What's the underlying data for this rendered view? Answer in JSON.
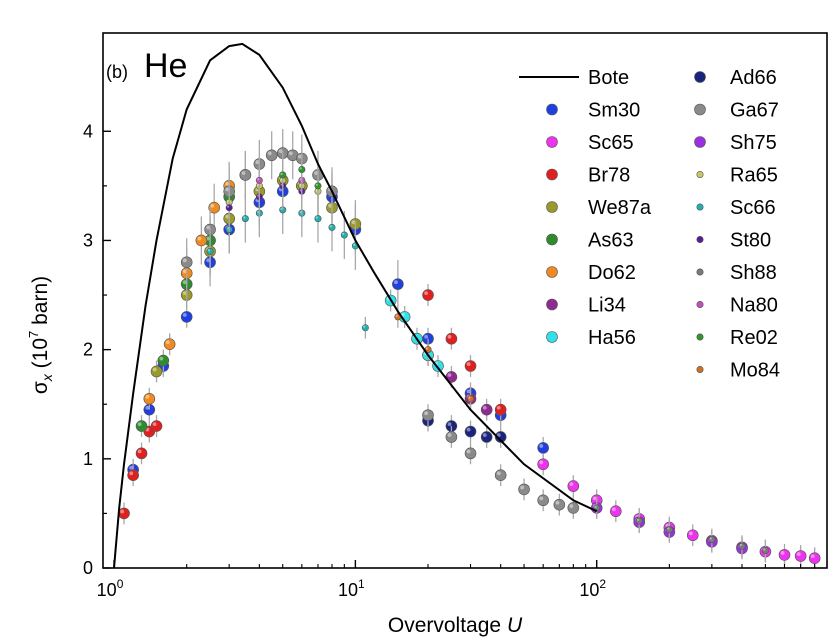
{
  "chart_data": {
    "type": "scatter",
    "panel_label": "(b)",
    "element": "He",
    "xlabel": "Overvoltage U",
    "xlabel_text": "Overvoltage ",
    "xlabel_var": "U",
    "ylabel": "σx (10^7 barn)",
    "ylabel_sigma": "σ",
    "ylabel_sub": "x",
    "ylabel_open": " (10",
    "ylabel_exp": "7",
    "ylabel_unit": " barn)",
    "xscale": "log",
    "xlim": [
      0.9,
      900
    ],
    "ylim": [
      0,
      4.9
    ],
    "x_ticks": [
      {
        "value": 1,
        "base": "10",
        "exp": "0"
      },
      {
        "value": 10,
        "base": "10",
        "exp": "1"
      },
      {
        "value": 100,
        "base": "10",
        "exp": "2"
      }
    ],
    "y_ticks": [
      {
        "value": 0,
        "label": "0"
      },
      {
        "value": 1,
        "label": "1"
      },
      {
        "value": 2,
        "label": "2"
      },
      {
        "value": 3,
        "label": "3"
      },
      {
        "value": 4,
        "label": "4"
      }
    ],
    "legend_position": "top-right",
    "legend": [
      {
        "name": "Bote",
        "kind": "line",
        "color": "#000000"
      },
      {
        "name": "Sm30",
        "kind": "marker",
        "color": "#1f3fe0",
        "size": "large"
      },
      {
        "name": "Sc65",
        "kind": "marker",
        "color": "#ee33ee",
        "size": "large"
      },
      {
        "name": "Br78",
        "kind": "marker",
        "color": "#e02020",
        "size": "large"
      },
      {
        "name": "We87a",
        "kind": "marker",
        "color": "#9a9a2a",
        "size": "large"
      },
      {
        "name": "As63",
        "kind": "marker",
        "color": "#2e8b2e",
        "size": "large"
      },
      {
        "name": "Do62",
        "kind": "marker",
        "color": "#f08a20",
        "size": "large"
      },
      {
        "name": "Li34",
        "kind": "marker",
        "color": "#8e2a92",
        "size": "large"
      },
      {
        "name": "Ha56",
        "kind": "marker",
        "color": "#33e0e8",
        "size": "large"
      },
      {
        "name": "Ad66",
        "kind": "marker",
        "color": "#1a237e",
        "size": "large"
      },
      {
        "name": "Ga67",
        "kind": "marker",
        "color": "#8a8a8a",
        "size": "large"
      },
      {
        "name": "Sh75",
        "kind": "marker",
        "color": "#9b30e0",
        "size": "large"
      },
      {
        "name": "Ra65",
        "kind": "marker",
        "color": "#c8c860",
        "size": "small"
      },
      {
        "name": "Sc66",
        "kind": "marker",
        "color": "#20b0b0",
        "size": "small"
      },
      {
        "name": "St80",
        "kind": "marker",
        "color": "#5a1a9a",
        "size": "small"
      },
      {
        "name": "Sh88",
        "kind": "marker",
        "color": "#7a7a7a",
        "size": "small"
      },
      {
        "name": "Na80",
        "kind": "marker",
        "color": "#c050c0",
        "size": "small"
      },
      {
        "name": "Re02",
        "kind": "marker",
        "color": "#2a9a2a",
        "size": "small"
      },
      {
        "name": "Mo84",
        "kind": "marker",
        "color": "#d07020",
        "size": "small"
      }
    ],
    "bote_curve": {
      "x": [
        1,
        1.05,
        1.1,
        1.2,
        1.35,
        1.5,
        1.75,
        2,
        2.5,
        3,
        3.4,
        4,
        5,
        6,
        7,
        8,
        10,
        12,
        15,
        20,
        30,
        50,
        80,
        100
      ],
      "y": [
        0,
        0.55,
        0.95,
        1.6,
        2.4,
        3.0,
        3.75,
        4.2,
        4.65,
        4.78,
        4.8,
        4.7,
        4.4,
        4.05,
        3.7,
        3.45,
        3.0,
        2.7,
        2.35,
        1.95,
        1.45,
        0.95,
        0.62,
        0.52
      ]
    },
    "series": [
      {
        "name": "Sm30",
        "x": [
          1.2,
          1.4,
          1.6,
          2,
          2.5,
          3,
          4,
          5,
          6,
          8,
          10,
          15,
          20,
          30,
          40,
          60
        ],
        "y": [
          0.9,
          1.45,
          1.85,
          2.3,
          2.8,
          3.1,
          3.35,
          3.45,
          3.5,
          3.4,
          3.1,
          2.6,
          2.1,
          1.6,
          1.4,
          1.1
        ]
      },
      {
        "name": "Sc65",
        "x": [
          60,
          80,
          100,
          120,
          150,
          200,
          250,
          300,
          400,
          500,
          600,
          700,
          800
        ],
        "y": [
          0.95,
          0.75,
          0.62,
          0.52,
          0.45,
          0.37,
          0.3,
          0.25,
          0.19,
          0.15,
          0.12,
          0.11,
          0.09
        ]
      },
      {
        "name": "Br78",
        "x": [
          1.1,
          1.2,
          1.3,
          1.4,
          1.5,
          20,
          25,
          30,
          40
        ],
        "y": [
          0.5,
          0.85,
          1.05,
          1.25,
          1.3,
          2.5,
          2.1,
          1.85,
          1.45
        ]
      },
      {
        "name": "We87a",
        "x": [
          1.5,
          2,
          2.5,
          3,
          4,
          5,
          6,
          8,
          10
        ],
        "y": [
          1.8,
          2.5,
          2.9,
          3.2,
          3.45,
          3.55,
          3.5,
          3.3,
          3.15
        ]
      },
      {
        "name": "As63",
        "x": [
          1.3,
          1.6,
          2,
          2.5,
          3,
          3.5
        ],
        "y": [
          1.3,
          1.9,
          2.6,
          3.0,
          3.4,
          3.6
        ]
      },
      {
        "name": "Do62",
        "x": [
          1.4,
          1.7,
          2,
          2.3,
          2.6,
          3
        ],
        "y": [
          1.55,
          2.05,
          2.7,
          3.0,
          3.3,
          3.5
        ]
      },
      {
        "name": "Li34",
        "x": [
          20,
          25,
          30,
          35
        ],
        "y": [
          1.95,
          1.75,
          1.55,
          1.45
        ]
      },
      {
        "name": "Ha56",
        "x": [
          14,
          16,
          18,
          20,
          22
        ],
        "y": [
          2.45,
          2.3,
          2.1,
          1.95,
          1.85
        ]
      },
      {
        "name": "Ad66",
        "x": [
          20,
          25,
          30,
          35,
          40
        ],
        "y": [
          1.35,
          1.3,
          1.25,
          1.2,
          1.2
        ]
      },
      {
        "name": "Ga67",
        "x": [
          2,
          2.5,
          3,
          3.5,
          4,
          4.5,
          5,
          5.5,
          6,
          7,
          8,
          20,
          25,
          30,
          40,
          50,
          60,
          70,
          80
        ],
        "y": [
          2.8,
          3.1,
          3.45,
          3.6,
          3.7,
          3.78,
          3.8,
          3.78,
          3.75,
          3.6,
          3.45,
          1.4,
          1.2,
          1.05,
          0.85,
          0.72,
          0.62,
          0.58,
          0.55
        ]
      },
      {
        "name": "Sh75",
        "x": [
          100,
          150,
          200,
          300,
          400
        ],
        "y": [
          0.55,
          0.42,
          0.33,
          0.24,
          0.18
        ]
      },
      {
        "name": "Ra65",
        "x": [
          3,
          4,
          5,
          6,
          7
        ],
        "y": [
          3.35,
          3.5,
          3.55,
          3.5,
          3.45
        ]
      },
      {
        "name": "Sc66",
        "x": [
          2.5,
          3,
          3.5,
          4,
          5,
          6,
          7,
          8,
          9,
          10,
          11
        ],
        "y": [
          2.9,
          3.1,
          3.2,
          3.25,
          3.28,
          3.25,
          3.2,
          3.12,
          3.05,
          2.95,
          2.2
        ]
      },
      {
        "name": "St80",
        "x": [
          3,
          4,
          5,
          6
        ],
        "y": [
          3.3,
          3.4,
          3.5,
          3.45
        ]
      },
      {
        "name": "Sh88",
        "x": [
          100,
          150,
          200,
          300,
          400,
          500
        ],
        "y": [
          0.55,
          0.43,
          0.35,
          0.26,
          0.2,
          0.16
        ]
      },
      {
        "name": "Na80",
        "x": [
          4,
          5,
          6
        ],
        "y": [
          3.55,
          3.6,
          3.55
        ]
      },
      {
        "name": "Re02",
        "x": [
          5,
          6,
          7
        ],
        "y": [
          3.6,
          3.65,
          3.5
        ]
      },
      {
        "name": "Mo84",
        "x": [
          15,
          20,
          30
        ],
        "y": [
          2.3,
          2.0,
          1.55
        ]
      }
    ]
  }
}
